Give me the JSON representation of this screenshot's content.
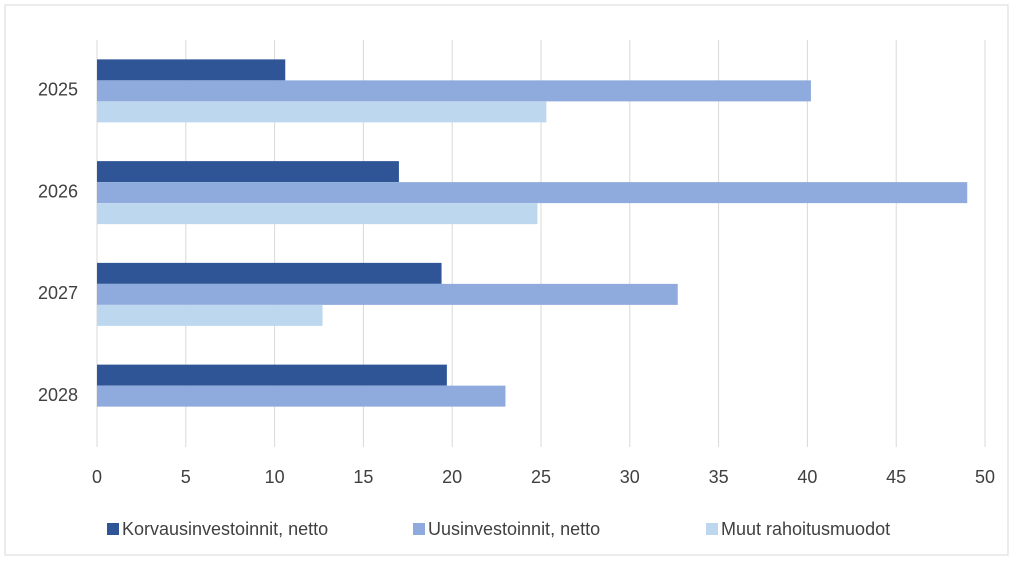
{
  "chart_data": {
    "type": "hbar",
    "categories": [
      "2025",
      "2026",
      "2027",
      "2028"
    ],
    "series": [
      {
        "name": "Korvausinvestoinnit, netto",
        "color": "#2f5597",
        "values": [
          10.6,
          17.0,
          19.4,
          19.7
        ]
      },
      {
        "name": "Uusinvestoinnit, netto",
        "color": "#8faadc",
        "values": [
          40.2,
          49.0,
          32.7,
          23.0
        ]
      },
      {
        "name": "Muut rahoitusmuodot",
        "color": "#bdd7ee",
        "values": [
          25.3,
          24.8,
          12.7,
          null
        ]
      }
    ],
    "xlim": [
      0,
      50
    ],
    "xticks": [
      0,
      5,
      10,
      15,
      20,
      25,
      30,
      35,
      40,
      45,
      50
    ],
    "grid": true,
    "legend": "bottom"
  }
}
